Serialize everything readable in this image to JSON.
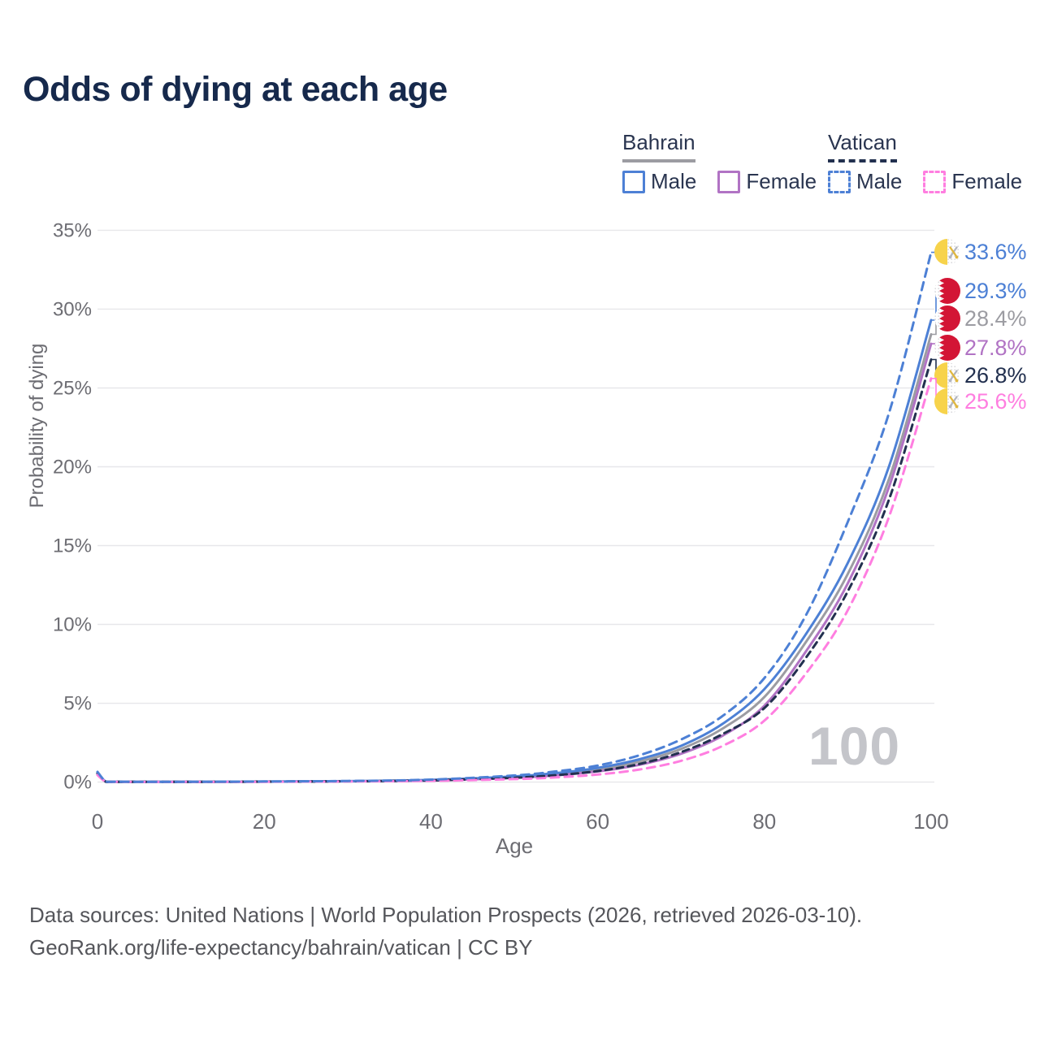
{
  "title": "Odds of dying at each age",
  "legend": {
    "groups": [
      {
        "name": "Bahrain",
        "line": {
          "color": "#9c9ca2",
          "dash": false
        },
        "items": [
          {
            "label": "Male",
            "color": "#4d80d5",
            "dash": false
          },
          {
            "label": "Female",
            "color": "#b173c4",
            "dash": false
          }
        ]
      },
      {
        "name": "Vatican",
        "line": {
          "color": "#22304f",
          "dash": true
        },
        "items": [
          {
            "label": "Male",
            "color": "#4d80d5",
            "dash": true
          },
          {
            "label": "Female",
            "color": "#ff7ee0",
            "dash": true
          }
        ]
      }
    ]
  },
  "chart_data": {
    "type": "line",
    "title": "Odds of dying at each age",
    "xlabel": "Age",
    "ylabel": "Probability of dying",
    "xlim": [
      0,
      100
    ],
    "ylim": [
      0,
      35
    ],
    "xticks": [
      0,
      20,
      40,
      60,
      80,
      100
    ],
    "yticks": [
      0,
      5,
      10,
      15,
      20,
      25,
      30,
      35
    ],
    "ytick_suffix": "%",
    "grid": "horizontal",
    "legend_position": "top-right",
    "watermark": "100",
    "x": [
      0,
      1,
      2,
      5,
      10,
      20,
      30,
      40,
      50,
      55,
      60,
      65,
      70,
      75,
      80,
      85,
      90,
      95,
      100
    ],
    "series": [
      {
        "id": "bahrain-total",
        "country": "Bahrain",
        "sex": "Both",
        "color": "#9c9ca2",
        "dash": null,
        "flag": "bahrain",
        "end_value": 28.4,
        "end_label": "28.4%",
        "values": [
          0.55,
          0.025,
          0.021,
          0.018,
          0.018,
          0.03,
          0.055,
          0.12,
          0.31,
          0.5,
          0.8,
          1.3,
          2.1,
          3.4,
          5.4,
          8.9,
          13.2,
          19.3,
          28.4
        ]
      },
      {
        "id": "bahrain-female",
        "country": "Bahrain",
        "sex": "Female",
        "color": "#b173c4",
        "dash": null,
        "flag": "bahrain",
        "end_value": 27.8,
        "end_label": "27.8%",
        "values": [
          0.5,
          0.022,
          0.019,
          0.016,
          0.016,
          0.028,
          0.05,
          0.1,
          0.27,
          0.43,
          0.68,
          1.1,
          1.8,
          2.95,
          4.85,
          8.3,
          12.6,
          18.8,
          27.8
        ]
      },
      {
        "id": "bahrain-male",
        "country": "Bahrain",
        "sex": "Male",
        "color": "#4d80d5",
        "dash": null,
        "flag": "bahrain",
        "end_value": 29.3,
        "end_label": "29.3%",
        "values": [
          0.6,
          0.028,
          0.024,
          0.02,
          0.02,
          0.035,
          0.06,
          0.14,
          0.36,
          0.57,
          0.9,
          1.45,
          2.3,
          3.7,
          5.9,
          9.4,
          13.9,
          20.1,
          29.3
        ]
      },
      {
        "id": "vatican-total",
        "country": "Vatican",
        "sex": "Both",
        "color": "#22304f",
        "dash": "8 6",
        "flag": "vatican",
        "end_value": 26.8,
        "end_label": "26.8%",
        "values": [
          0.55,
          0.024,
          0.02,
          0.017,
          0.017,
          0.03,
          0.05,
          0.11,
          0.28,
          0.44,
          0.7,
          1.15,
          1.9,
          3.05,
          4.7,
          7.9,
          12.1,
          18.0,
          26.8
        ]
      },
      {
        "id": "vatican-female",
        "country": "Vatican",
        "sex": "Female",
        "color": "#ff7ee0",
        "dash": "10 7",
        "flag": "vatican",
        "end_value": 25.6,
        "end_label": "25.6%",
        "values": [
          0.45,
          0.02,
          0.017,
          0.013,
          0.013,
          0.022,
          0.04,
          0.08,
          0.19,
          0.3,
          0.48,
          0.8,
          1.35,
          2.3,
          3.9,
          6.9,
          10.9,
          16.9,
          25.6
        ]
      },
      {
        "id": "vatican-male",
        "country": "Vatican",
        "sex": "Male",
        "color": "#4d80d5",
        "dash": "10 7",
        "flag": "vatican",
        "end_value": 33.6,
        "end_label": "33.6%",
        "values": [
          0.65,
          0.03,
          0.025,
          0.02,
          0.02,
          0.04,
          0.07,
          0.16,
          0.42,
          0.68,
          1.05,
          1.7,
          2.7,
          4.2,
          6.6,
          10.6,
          16.5,
          23.5,
          33.6
        ]
      }
    ],
    "flag_colors": {
      "bahrain_red": "#d31535",
      "vatican_yellow": "#f7d34b",
      "key_gold": "#e0b73f",
      "key_silver": "#b3b6bf"
    }
  },
  "footer": {
    "line1": "Data sources: United Nations | World Population Prospects (2026, retrieved 2026-03-10).",
    "line2": "GeoRank.org/life-expectancy/bahrain/vatican | CC BY"
  }
}
